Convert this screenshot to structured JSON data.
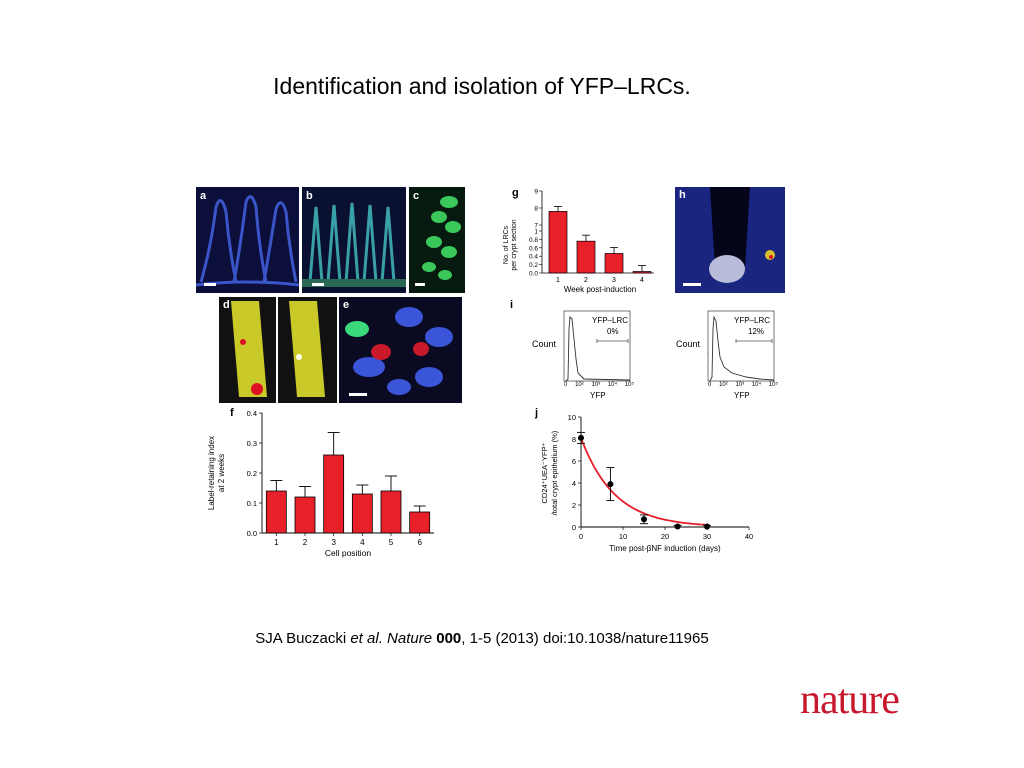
{
  "slide": {
    "title": "Identification and isolation of YFP–LRCs.",
    "citation": {
      "authors": "SJA Buczacki ",
      "etal": "et al.",
      "journal": " Nature ",
      "volume": "000",
      "rest": ", 1-5 (2013) doi:10.1038/nature11965"
    },
    "logo": "nature"
  },
  "panels": {
    "a": "a",
    "b": "b",
    "c": "c",
    "d": "d",
    "e": "e",
    "f": "f",
    "g": "g",
    "h": "h",
    "i": "i",
    "j": "j"
  },
  "flow": {
    "count_label": "Count",
    "x_label": "YFP",
    "ticks": [
      "0",
      "10²",
      "10³",
      "10⁴",
      "10⁵"
    ],
    "left": {
      "gate": "YFP–LRC",
      "pct": "0%"
    },
    "right": {
      "gate": "YFP–LRC",
      "pct": "12%"
    }
  },
  "chart_data": [
    {
      "id": "g",
      "type": "bar",
      "categories": [
        "1",
        "2",
        "3",
        "4"
      ],
      "values": [
        7.8,
        3.1,
        1.9,
        0.1
      ],
      "errors": [
        0.5,
        0.4,
        0.35,
        0.1
      ],
      "xlabel": "Week post-induction",
      "ylabel": [
        "No. of LRCs",
        "per crypt section"
      ],
      "ylim": [
        0,
        9
      ],
      "yticks": [
        "0.0",
        "0.2",
        "0.4",
        "0.6",
        "0.8",
        "1",
        "7",
        "8",
        "9"
      ],
      "color": "#e8202a"
    },
    {
      "id": "f",
      "type": "bar",
      "categories": [
        "1",
        "2",
        "3",
        "4",
        "5",
        "6"
      ],
      "values": [
        0.14,
        0.12,
        0.26,
        0.13,
        0.14,
        0.07
      ],
      "errors": [
        0.035,
        0.035,
        0.075,
        0.03,
        0.05,
        0.02
      ],
      "xlabel": "Cell position",
      "ylabel": [
        "Label-retaining index",
        "at 2 weeks"
      ],
      "ylim": [
        0,
        0.4
      ],
      "yticks": [
        "0.0",
        "0.1",
        "0.2",
        "0.3",
        "0.4"
      ],
      "color": "#e8202a"
    },
    {
      "id": "j",
      "type": "scatter",
      "x": [
        0,
        7,
        15,
        23,
        30
      ],
      "y": [
        8.1,
        3.9,
        0.7,
        0.05,
        0.05
      ],
      "errors": [
        0.5,
        1.5,
        0.4,
        0.1,
        0.1
      ],
      "fit": "exponential decay",
      "xlabel": "Time post-βNF induction (days)",
      "ylabel": [
        "CD24⁺UEA⁻YFP⁺",
        "/total crypt epithelium (%)"
      ],
      "xlim": [
        0,
        40
      ],
      "ylim": [
        0,
        10
      ],
      "xticks": [
        "0",
        "10",
        "20",
        "30",
        "40"
      ],
      "yticks": [
        "0",
        "2",
        "4",
        "6",
        "8",
        "10"
      ],
      "fit_color": "#e8202a"
    }
  ]
}
